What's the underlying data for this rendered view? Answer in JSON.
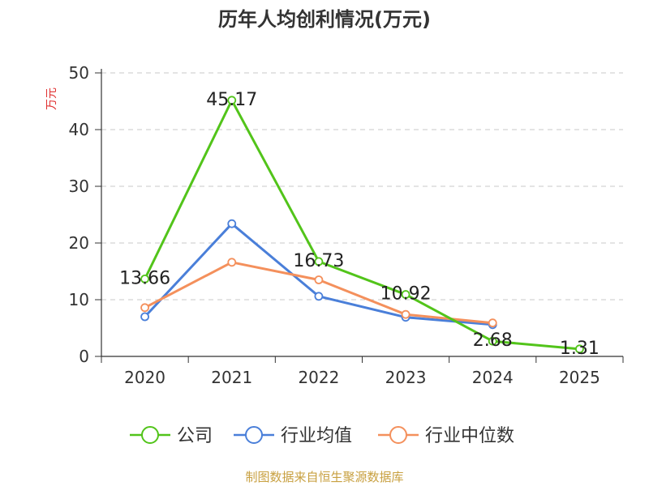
{
  "chart_data": {
    "type": "line",
    "title": "历年人均创利情况(万元)",
    "ylabel": "万元",
    "xlabel": "",
    "ylim": [
      0,
      50
    ],
    "yticks": [
      0,
      10,
      20,
      30,
      40,
      50
    ],
    "categories": [
      "2020",
      "2021",
      "2022",
      "2023",
      "2024",
      "2025"
    ],
    "grid": true,
    "legend_position": "bottom",
    "series": [
      {
        "name": "公司",
        "color": "#52c41a",
        "values": [
          13.66,
          45.17,
          16.73,
          10.92,
          2.68,
          1.31
        ],
        "labels": [
          "13.66",
          "45.17",
          "16.73",
          "10.92",
          "2.68",
          "1.31"
        ]
      },
      {
        "name": "行业均值",
        "color": "#4a7fd9",
        "values": [
          7.0,
          23.4,
          10.6,
          6.9,
          5.6,
          null
        ]
      },
      {
        "name": "行业中位数",
        "color": "#f4905c",
        "values": [
          8.6,
          16.6,
          13.5,
          7.4,
          5.9,
          null
        ]
      }
    ]
  },
  "unit_color": "#e03030",
  "footer": {
    "source": "制图数据来自恒生聚源数据库",
    "color": "#c8a040"
  }
}
